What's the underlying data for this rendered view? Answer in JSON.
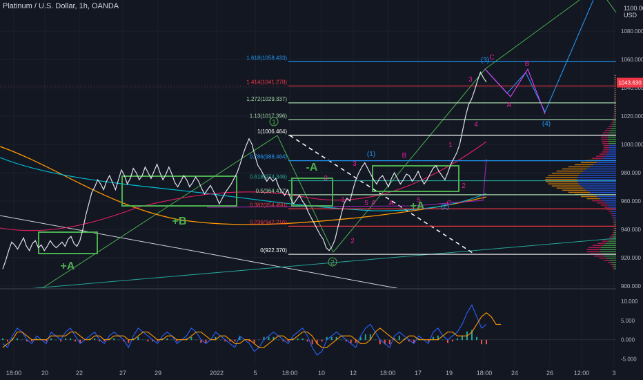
{
  "header": {
    "title": "Platinum / U.S. Dollar, 1h, OANDA",
    "currency_top": "1100.000",
    "currency": "USD"
  },
  "colors": {
    "background": "#131722",
    "up": "#26a69a",
    "down": "#ef5350",
    "fib_blue": "#2196f3",
    "fib_red": "#f23645",
    "fib_green": "#a5d6a7",
    "box": "#4caf50",
    "wave_magenta": "#e91e9b",
    "wave_green": "#4caf50",
    "wave_blue": "#2196f3"
  },
  "chart_data": [
    {
      "type": "line",
      "title": "Platinum / U.S. Dollar, 1h, OANDA",
      "ylabel": "USD",
      "ylim": [
        898,
        1102
      ],
      "y_ticks": [
        "900.000",
        "920.000",
        "940.000",
        "960.000",
        "980.000",
        "1000.000",
        "1020.000",
        "1040.000",
        "1060.000",
        "1080.000"
      ],
      "x_ticks": [
        "18:00",
        "20",
        "22",
        "27",
        "29",
        "2022",
        "5",
        "18:00",
        "10",
        "12",
        "18:00",
        "17",
        "19",
        "18:00",
        "24",
        "26",
        "12:00",
        "3"
      ],
      "last_price": "1043.630",
      "series": [
        {
          "name": "",
          "values": [
            912,
            918,
            925,
            931,
            929,
            926,
            930,
            934,
            928,
            925,
            930,
            932,
            927,
            929,
            925,
            928,
            932,
            929,
            927,
            929,
            931,
            928,
            933,
            935,
            930,
            928,
            932,
            940,
            950,
            958,
            966,
            970,
            975,
            972,
            968,
            974,
            978,
            973,
            968,
            975,
            982,
            978,
            972,
            976,
            983,
            980,
            975,
            978,
            984,
            980,
            976,
            981,
            986,
            980,
            975,
            979,
            984,
            979,
            973,
            970,
            974,
            978,
            975,
            970,
            973,
            977,
            974,
            969,
            965,
            968,
            971,
            967,
            963,
            958,
            962,
            966,
            969,
            972,
            976,
            980,
            986,
            993,
            999,
            1004,
            1000,
            992,
            985,
            982,
            978,
            974,
            977,
            974,
            976,
            970,
            967,
            964,
            968,
            962,
            958,
            961,
            964,
            960,
            957,
            952,
            948,
            944,
            940,
            936,
            933,
            927,
            925,
            928,
            933,
            942,
            950,
            958,
            962,
            960,
            968,
            975,
            980,
            984,
            987,
            983,
            979,
            975,
            972,
            976,
            978,
            974,
            970,
            976,
            980,
            976,
            972,
            975,
            979,
            978,
            974,
            977,
            981,
            976,
            972,
            975,
            979,
            983,
            985,
            981,
            978,
            975,
            980,
            986,
            990,
            994,
            1000,
            1010,
            1020,
            1028,
            1032,
            1038,
            1045,
            1051,
            1047,
            1044
          ]
        }
      ]
    },
    {
      "type": "line",
      "title": "",
      "ylim": [
        -6.5,
        12.5
      ],
      "y_ticks": [
        "10.000",
        "5.000",
        "0.000",
        "-5.000"
      ],
      "series": [
        {
          "name": "",
          "values": [
            -1,
            -2,
            1,
            3,
            2,
            0,
            -1,
            1,
            0,
            -1,
            2,
            1,
            0,
            2,
            3,
            1,
            -1,
            0,
            1,
            2,
            0,
            -1,
            1,
            2,
            1,
            0,
            -2,
            1,
            3,
            2,
            1,
            0,
            -1,
            1,
            2,
            1,
            -1,
            0,
            1,
            3,
            2,
            0,
            -1,
            0,
            2,
            1,
            0,
            -1,
            -2,
            1,
            0,
            -1,
            -3,
            -2,
            0,
            1,
            2,
            1,
            0,
            -1,
            1,
            2,
            3,
            1,
            -2,
            -4,
            -3,
            0,
            1,
            2,
            1,
            0,
            -1,
            -2,
            1,
            3,
            4,
            2,
            0,
            -1,
            -2,
            1,
            2,
            1,
            0,
            -1,
            1,
            0,
            -1,
            2,
            3,
            1,
            0,
            1,
            2,
            4,
            7,
            9,
            6,
            3,
            4
          ]
        },
        {
          "name": "",
          "values": [
            -2,
            -1,
            0,
            2,
            2,
            1,
            0,
            0,
            0,
            0,
            1,
            1,
            1,
            1,
            2,
            2,
            1,
            0,
            0,
            1,
            1,
            0,
            0,
            1,
            1,
            1,
            0,
            0,
            1,
            2,
            2,
            1,
            0,
            0,
            1,
            1,
            0,
            0,
            0,
            1,
            2,
            2,
            1,
            0,
            0,
            1,
            1,
            0,
            -1,
            -1,
            0,
            0,
            -1,
            -2,
            -2,
            -1,
            0,
            1,
            1,
            0,
            0,
            1,
            2,
            2,
            1,
            -1,
            -2,
            -2,
            -1,
            0,
            1,
            1,
            1,
            0,
            -1,
            -1,
            0,
            2,
            3,
            2,
            1,
            0,
            -1,
            0,
            1,
            1,
            0,
            0,
            0,
            0,
            0,
            1,
            2,
            2,
            1,
            1,
            1,
            2,
            4,
            6,
            7,
            6,
            4,
            4
          ]
        }
      ]
    }
  ],
  "fib_levels": [
    {
      "label": "1.618(1058.433)",
      "price": 1058.433,
      "color": "#2196f3"
    },
    {
      "label": "1.414(1041.278)",
      "price": 1041.278,
      "color": "#f23645"
    },
    {
      "label": "1.272(1029.337)",
      "price": 1029.337,
      "color": "#a5d6a7"
    },
    {
      "label": "1.13(1017.396)",
      "price": 1017.396,
      "color": "#a5d6a7"
    },
    {
      "label": "1(1006.464)",
      "price": 1006.464,
      "color": "#ffffff"
    },
    {
      "label": "0.786(988.464)",
      "price": 988.464,
      "color": "#2196f3"
    },
    {
      "label": "0.618(974.346)",
      "price": 974.346,
      "color": "#26a69a"
    },
    {
      "label": "0.5(964.417)",
      "price": 964.417,
      "color": "#a5d6a7"
    },
    {
      "label": "0.382(954.490)",
      "price": 954.49,
      "color": "#f23645"
    },
    {
      "label": "0.236(942.216)",
      "price": 942.216,
      "color": "#f23645"
    },
    {
      "label": "0(922.370)",
      "price": 922.37,
      "color": "#ffffff"
    }
  ],
  "annotations": {
    "box_labels": [
      "+A",
      "+B",
      "-A",
      "+A"
    ],
    "wave_green": [
      "1",
      "2"
    ],
    "wave_blue": [
      "(1)",
      "(2)",
      "(3)",
      "(4)"
    ],
    "wave_magenta": [
      "3",
      "5",
      "B",
      "A",
      "C",
      "1",
      "2",
      "3",
      "4",
      "5",
      "1",
      "2",
      "3",
      "4",
      "A",
      "B",
      "C"
    ],
    "wave_small": [
      "5",
      "5"
    ]
  }
}
